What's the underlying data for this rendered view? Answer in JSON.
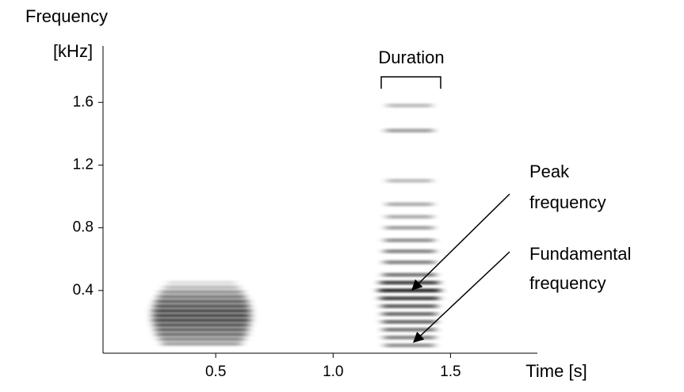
{
  "chart_data": {
    "type": "spectrogram",
    "ylabel": [
      "Frequency",
      "[kHz]"
    ],
    "xlabel": "Time [s]",
    "xlim": [
      0.02,
      1.87
    ],
    "ylim": [
      0,
      1.96
    ],
    "xticks": [
      0.5,
      {
        "value": 1,
        "label": "1.0"
      },
      1.5
    ],
    "yticks": [
      0.4,
      0.8,
      1.2,
      1.6
    ],
    "color": "#000000",
    "calls": [
      {
        "start": 0.2,
        "end": 0.68,
        "harmonics": [
          0.06,
          0.09,
          0.12,
          0.15,
          0.18,
          0.21,
          0.24,
          0.27,
          0.3,
          0.33,
          0.36,
          0.39,
          0.42,
          0.45
        ],
        "intensities": [
          0.35,
          0.45,
          0.55,
          0.6,
          0.65,
          0.7,
          0.7,
          0.7,
          0.65,
          0.6,
          0.5,
          0.4,
          0.25,
          0.12
        ]
      },
      {
        "start": 1.18,
        "end": 1.47,
        "harmonics": [
          0.05,
          0.1,
          0.15,
          0.2,
          0.25,
          0.3,
          0.35,
          0.4,
          0.45,
          0.5,
          0.58,
          0.65,
          0.72,
          0.8,
          0.87,
          0.95,
          1.1,
          1.42,
          1.58
        ],
        "intensities": [
          0.4,
          0.45,
          0.5,
          0.55,
          0.55,
          0.6,
          0.7,
          0.8,
          0.7,
          0.5,
          0.45,
          0.45,
          0.4,
          0.35,
          0.3,
          0.3,
          0.25,
          0.35,
          0.25
        ]
      }
    ],
    "duration_label": "Duration",
    "peak_label": [
      "Peak",
      "frequency"
    ],
    "fundamental_label": [
      "Fundamental",
      "frequency"
    ]
  }
}
